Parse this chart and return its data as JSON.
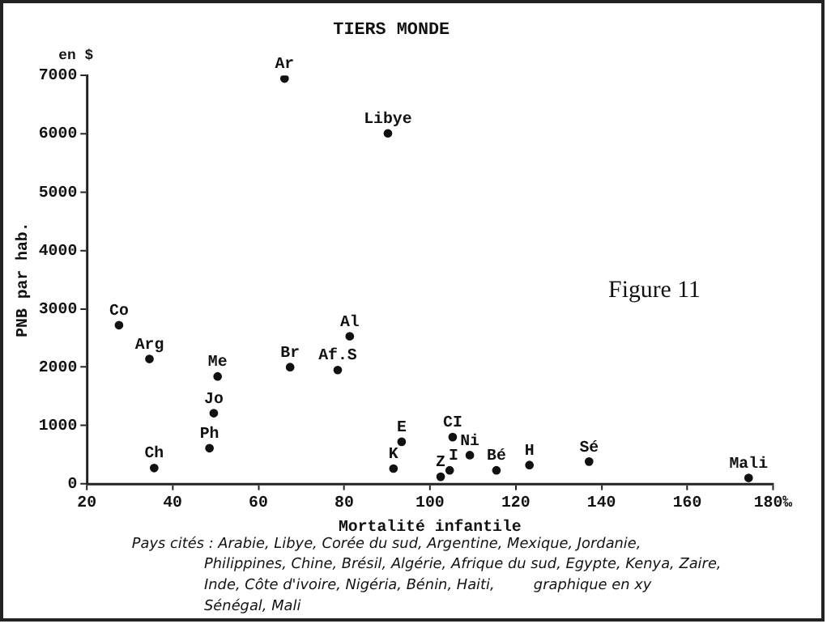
{
  "chart_data": {
    "type": "scatter",
    "title": "TIERS MONDE",
    "xlabel": "Mortalité infantile",
    "ylabel": "PNB par hab.",
    "x": [
      66.1,
      90.2,
      27.5,
      34.6,
      50.5,
      49.6,
      48.6,
      35.7,
      67.4,
      81.3,
      78.5,
      93.4,
      91.5,
      102.5,
      104.6,
      105.3,
      109.3,
      115.5,
      123.2,
      137.1,
      174.3
    ],
    "values": [
      6950,
      6010,
      2720,
      2140,
      1840,
      1210,
      610,
      270,
      2000,
      2530,
      1950,
      720,
      260,
      120,
      230,
      800,
      490,
      230,
      320,
      380,
      100
    ],
    "color": "#111111",
    "marker": "circle",
    "grid": false,
    "legend": false,
    "xlim": [
      20,
      180
    ],
    "xticks": [
      20,
      40,
      60,
      80,
      100,
      120,
      140,
      160,
      {
        "value": 180,
        "label": "180‰"
      }
    ],
    "ylim": [
      0,
      7000
    ],
    "yticks": [
      0,
      1000,
      2000,
      3000,
      4000,
      5000,
      6000,
      7000
    ],
    "annotations": [
      {
        "text": "Ar",
        "x": 66.1,
        "y": 6950
      },
      {
        "text": "Libye",
        "x": 90.2,
        "y": 6010
      },
      {
        "text": "Co",
        "x": 27.5,
        "y": 2720
      },
      {
        "text": "Arg",
        "x": 34.6,
        "y": 2140
      },
      {
        "text": "Me",
        "x": 50.5,
        "y": 1840
      },
      {
        "text": "Jo",
        "x": 49.6,
        "y": 1210
      },
      {
        "text": "Ph",
        "x": 48.6,
        "y": 610
      },
      {
        "text": "Ch",
        "x": 35.7,
        "y": 270
      },
      {
        "text": "Br",
        "x": 67.4,
        "y": 2000
      },
      {
        "text": "Al",
        "x": 81.3,
        "y": 2530
      },
      {
        "text": "Af.S",
        "x": 78.5,
        "y": 1950
      },
      {
        "text": "E",
        "x": 93.4,
        "y": 720
      },
      {
        "text": "K",
        "x": 91.5,
        "y": 260
      },
      {
        "text": "Z",
        "x": 102.5,
        "y": 120
      },
      {
        "text": "I",
        "x": 104.6,
        "y": 230
      },
      {
        "text": "CI",
        "x": 105.3,
        "y": 800
      },
      {
        "text": "Ni",
        "x": 109.3,
        "y": 490
      },
      {
        "text": "Bé",
        "x": 115.5,
        "y": 230
      },
      {
        "text": "H",
        "x": 123.2,
        "y": 320
      },
      {
        "text": "Sé",
        "x": 137.1,
        "y": 380
      },
      {
        "text": "Mali",
        "x": 174.3,
        "y": 100
      },
      "en $",
      "Figure 11",
      "Pays cités : Arabie, Libye, Corée du sud, Argentine, Mexique, Jordanie, Philippines, Chine, Brésil, Algérie, Afrique du sud, Egypte, Kenya, Zaire, Inde, Côte d'ivoire, Nigéria, Bénin, Haiti, Sénégal, Mali",
      "graphique en xy"
    ]
  }
}
